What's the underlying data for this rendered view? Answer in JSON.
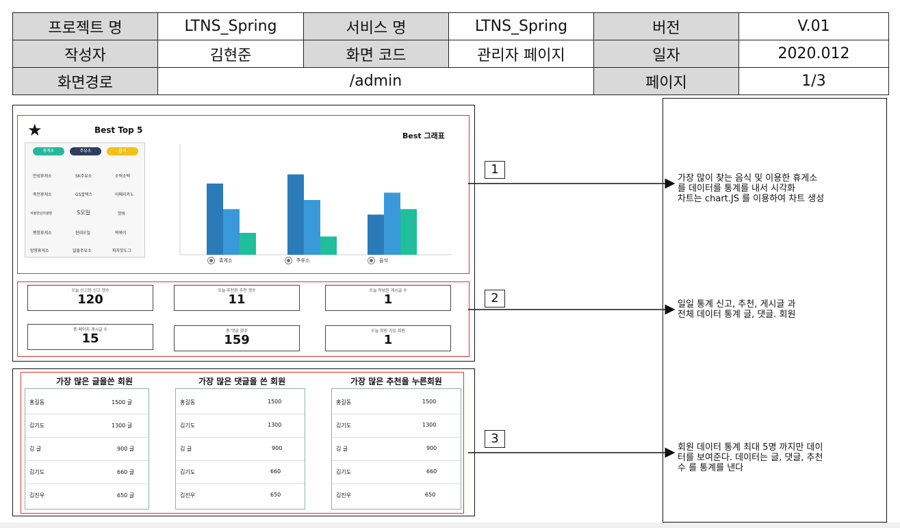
{
  "header": {
    "row1": {
      "l1": "프로젝트 명",
      "v1": "LTNS_Spring",
      "l2": "서비스 명",
      "v2": "LTNS_Spring",
      "l3": "버전",
      "v3": "V.01"
    },
    "row2": {
      "l1": "작성자",
      "v1": "김현준",
      "l2": "화면 코드",
      "v2": "관리자 페이지",
      "l3": "일자",
      "v3": "2020.012"
    },
    "row3": {
      "l1": "화면경로",
      "v1": "/admin",
      "l3": "페이지",
      "v3": "1/3"
    }
  },
  "section1": {
    "best_title": "Best Top 5",
    "graph_title": "Best 그래표",
    "pills": [
      "휴게소",
      "주유소",
      "음식"
    ],
    "colors": {
      "pill1": "#27b89a",
      "pill2": "#2f3e5e",
      "pill3": "#f2c21b",
      "bar1": "#2b7bb9",
      "bar2": "#3a9ad9",
      "bar3": "#1fbf9b"
    },
    "rows": [
      [
        "안성휴게소",
        "SK주유소",
        "소떡소떡"
      ],
      [
        "죽전휴게소",
        "GS칼텍스",
        "아메리카노"
      ],
      [
        "서울만남의광장",
        "S오일",
        "핫바"
      ],
      [
        "평창휴게소",
        "현대오일",
        "떡볶이"
      ],
      [
        "망향휴게소",
        "알뜰주유소",
        "피자핫도그"
      ]
    ]
  },
  "chart_data": {
    "type": "bar",
    "title": "Best 그래표",
    "categories": [
      "휴게소",
      "주유소",
      "음식"
    ],
    "series": [
      {
        "values": [
          78,
          88,
          44
        ]
      },
      {
        "values": [
          50,
          60,
          68
        ]
      },
      {
        "values": [
          24,
          20,
          50
        ]
      }
    ],
    "ylim": [
      0,
      120
    ],
    "legend": [
      "휴게소",
      "주유소",
      "음식"
    ]
  },
  "section2": {
    "stats": [
      {
        "label": "오늘 신고된 신고 갯수",
        "value": "120"
      },
      {
        "label": "오늘 추천된 추천 갯수",
        "value": "11"
      },
      {
        "label": "오늘 작성된 게시글 수",
        "value": "1"
      },
      {
        "label": "총 페이지 게시글 수",
        "value": "15"
      },
      {
        "label": "총 댓글 갯수",
        "value": "159"
      },
      {
        "label": "오늘 회원 가입 회원",
        "value": "1"
      }
    ]
  },
  "section3": {
    "titles": [
      "가장 많은 글을쓴 회원",
      "가장 많은 댓글을 쓴 회원",
      "가장 많은 추천을 누른회원"
    ],
    "posts": [
      {
        "name": "홍길동",
        "count": "1500 글"
      },
      {
        "name": "김기도",
        "count": "1300 글"
      },
      {
        "name": "김 글",
        "count": "900 글"
      },
      {
        "name": "김기도",
        "count": "660 글"
      },
      {
        "name": "김진우",
        "count": "650 글"
      }
    ],
    "comments": [
      {
        "name": "홍길동",
        "count": "1500"
      },
      {
        "name": "김기도",
        "count": "1300"
      },
      {
        "name": "김 글",
        "count": "900"
      },
      {
        "name": "김기도",
        "count": "660"
      },
      {
        "name": "김진우",
        "count": "650"
      }
    ],
    "recommends": [
      {
        "name": "홍길동",
        "count": "1500"
      },
      {
        "name": "김기도",
        "count": "1300"
      },
      {
        "name": "김 글",
        "count": "900"
      },
      {
        "name": "김기도",
        "count": "660"
      },
      {
        "name": "김진우",
        "count": "650"
      }
    ]
  },
  "callouts": {
    "n1": "1",
    "n2": "2",
    "n3": "3",
    "d1": "가장 많이 찾는 음식 및 이용한 휴게소\n를 데이터를 통계를 내서 시각화\n차트는 chart.JS 를 이용하여 차트 생성",
    "d2": "일일 통계 신고, 추천, 게시글 과\n전체 데이터 통계 글, 댓글. 회원",
    "d3": "회원 데이터 통계 최대 5명 까지만 데이\n터를 보여준다. 데이터는 글, 댓글, 추천\n수 를 통계를 낸다"
  }
}
